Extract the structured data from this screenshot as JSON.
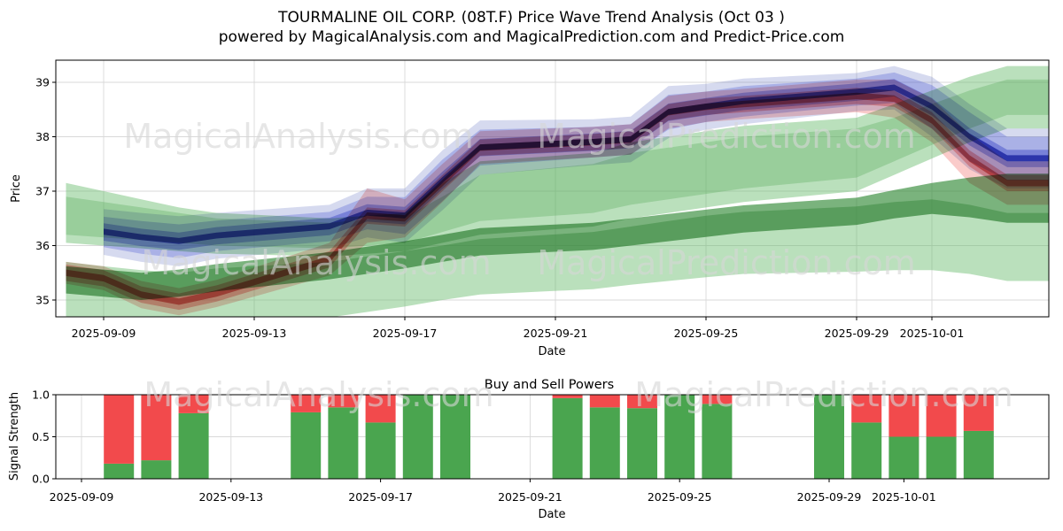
{
  "header": {
    "title_line1": "TOURMALINE OIL CORP. (08T.F) Price Wave Trend Analysis (Oct 03 )",
    "title_line2": "powered by MagicalAnalysis.com and MagicalPrediction.com and Predict-Price.com"
  },
  "watermarks": {
    "analysis": "MagicalAnalysis.com",
    "prediction": "MagicalPrediction.com"
  },
  "chart_data": [
    {
      "type": "area",
      "name": "price-wave-trend",
      "xlabel": "Date",
      "ylabel": "Price",
      "ylim": [
        34.69,
        39.41
      ],
      "yticks": [
        35,
        36,
        37,
        38,
        39
      ],
      "ytick_labels": [
        "35",
        "36",
        "37",
        "38",
        "39"
      ],
      "xticks": [
        "2025-09-09",
        "2025-09-13",
        "2025-09-17",
        "2025-09-21",
        "2025-09-25",
        "2025-09-29",
        "2025-10-01"
      ],
      "grid": true,
      "legend": "none",
      "dates": [
        "2025-09-08",
        "2025-09-09",
        "2025-09-10",
        "2025-09-11",
        "2025-09-12",
        "2025-09-15",
        "2025-09-16",
        "2025-09-17",
        "2025-09-18",
        "2025-09-19",
        "2025-09-22",
        "2025-09-23",
        "2025-09-24",
        "2025-09-25",
        "2025-09-26",
        "2025-09-29",
        "2025-09-30",
        "2025-10-01",
        "2025-10-02",
        "2025-10-03"
      ],
      "series": [
        {
          "name": "green-outer-upper-band",
          "color": "#66bb6a",
          "opacity": 0.45,
          "start_index": 0,
          "top": [
            37.15,
            37.0,
            36.85,
            36.7,
            36.6,
            36.5,
            36.55,
            36.6,
            37.15,
            37.55,
            37.7,
            37.9,
            38.0,
            38.1,
            38.2,
            38.35,
            38.6,
            38.85,
            39.1,
            39.3
          ],
          "bottom": [
            36.05,
            36.0,
            35.95,
            35.9,
            35.85,
            35.8,
            35.85,
            35.9,
            36.05,
            36.2,
            36.35,
            36.5,
            36.6,
            36.7,
            36.8,
            37.0,
            37.3,
            37.6,
            37.9,
            38.15
          ]
        },
        {
          "name": "green-inner-upper-band",
          "color": "#66bb6a",
          "opacity": 0.3,
          "start_index": 0,
          "top": [
            36.9,
            36.8,
            36.7,
            36.6,
            36.5,
            36.42,
            36.48,
            36.52,
            36.9,
            37.3,
            37.5,
            37.7,
            37.8,
            37.9,
            38.0,
            38.15,
            38.35,
            38.6,
            38.85,
            39.05
          ],
          "bottom": [
            36.2,
            36.15,
            36.1,
            36.05,
            36.0,
            35.95,
            36.0,
            36.05,
            36.25,
            36.45,
            36.6,
            36.75,
            36.85,
            36.95,
            37.05,
            37.25,
            37.55,
            37.85,
            38.15,
            38.4
          ]
        },
        {
          "name": "green-outer-lower-band",
          "color": "#66bb6a",
          "opacity": 0.45,
          "start_index": 0,
          "top": [
            35.7,
            35.62,
            35.55,
            35.5,
            35.58,
            35.7,
            35.8,
            35.9,
            36.0,
            36.12,
            36.25,
            36.35,
            36.45,
            36.55,
            36.62,
            36.72,
            36.8,
            36.85,
            36.75,
            36.6
          ],
          "bottom": [
            34.7,
            34.62,
            34.55,
            34.5,
            34.55,
            34.68,
            34.78,
            34.88,
            35.0,
            35.1,
            35.2,
            35.28,
            35.35,
            35.42,
            35.48,
            35.52,
            35.55,
            35.55,
            35.48,
            35.35
          ]
        },
        {
          "name": "green-mid-band",
          "color": "#338a37",
          "opacity": 0.65,
          "start_index": 0,
          "top": [
            35.62,
            35.56,
            35.5,
            35.56,
            35.66,
            35.88,
            35.98,
            36.08,
            36.2,
            36.32,
            36.42,
            36.5,
            36.58,
            36.66,
            36.74,
            36.88,
            37.02,
            37.15,
            37.25,
            37.32
          ],
          "bottom": [
            35.12,
            35.06,
            35.0,
            35.06,
            35.16,
            35.38,
            35.48,
            35.58,
            35.7,
            35.82,
            35.92,
            36.0,
            36.08,
            36.16,
            36.24,
            36.38,
            36.5,
            36.58,
            36.52,
            36.42
          ]
        },
        {
          "name": "red-wide-band",
          "color": "#ef5350",
          "opacity": 0.3,
          "start_index": 0,
          "top": [
            35.7,
            35.62,
            35.35,
            35.22,
            35.37,
            36.05,
            37.05,
            36.85,
            37.5,
            38.1,
            38.18,
            38.23,
            38.75,
            38.83,
            38.88,
            39.05,
            39.05,
            38.7,
            38.05,
            37.55
          ],
          "bottom": [
            35.3,
            35.18,
            34.85,
            34.72,
            34.87,
            35.45,
            36.05,
            36.15,
            36.8,
            37.5,
            37.62,
            37.67,
            38.15,
            38.27,
            38.32,
            38.45,
            38.35,
            37.9,
            37.15,
            36.75
          ]
        },
        {
          "name": "red-mid-band",
          "color": "#e84547",
          "opacity": 0.4,
          "start_index": 0,
          "top": [
            35.65,
            35.55,
            35.25,
            35.12,
            35.27,
            35.9,
            36.7,
            36.65,
            37.3,
            37.95,
            38.05,
            38.1,
            38.6,
            38.7,
            38.75,
            38.9,
            38.85,
            38.45,
            37.75,
            37.3
          ],
          "bottom": [
            35.35,
            35.25,
            34.95,
            34.82,
            34.97,
            35.6,
            36.4,
            36.35,
            37.0,
            37.65,
            37.75,
            37.8,
            38.3,
            38.4,
            38.45,
            38.6,
            38.55,
            38.15,
            37.45,
            37.0
          ]
        },
        {
          "name": "red-center-line",
          "color": "#c62828",
          "opacity": 0.6,
          "start_index": 0,
          "top": [
            35.56,
            35.46,
            35.16,
            35.03,
            35.18,
            35.81,
            36.61,
            36.56,
            37.21,
            37.86,
            37.96,
            38.01,
            38.51,
            38.61,
            38.66,
            38.81,
            38.76,
            38.36,
            37.66,
            37.21
          ],
          "bottom": [
            35.44,
            35.34,
            35.04,
            34.91,
            35.06,
            35.69,
            36.49,
            36.44,
            37.09,
            37.74,
            37.84,
            37.89,
            38.39,
            38.49,
            38.54,
            38.69,
            38.64,
            38.24,
            37.54,
            37.09
          ]
        },
        {
          "name": "blue-xwide-band",
          "color": "#5c6bc0",
          "opacity": 0.25,
          "start_index": 1,
          "top": [
            36.67,
            36.6,
            36.54,
            36.6,
            36.75,
            37.05,
            37.05,
            37.75,
            38.3,
            38.32,
            38.37,
            38.93,
            38.97,
            39.07,
            39.17,
            39.3,
            39.1,
            38.6,
            38.15
          ],
          "bottom": [
            35.83,
            35.7,
            35.62,
            35.76,
            35.95,
            36.15,
            36.05,
            36.65,
            37.3,
            37.48,
            37.53,
            37.97,
            38.13,
            38.23,
            38.47,
            38.5,
            38.0,
            37.4,
            37.05
          ]
        },
        {
          "name": "blue-wide-band",
          "color": "#5160e0",
          "opacity": 0.3,
          "start_index": 1,
          "top": [
            36.53,
            36.45,
            36.39,
            36.46,
            36.62,
            36.9,
            36.89,
            37.58,
            38.13,
            38.18,
            38.23,
            38.77,
            38.83,
            38.93,
            39.07,
            39.18,
            38.95,
            38.45,
            38.0
          ],
          "bottom": [
            35.97,
            35.85,
            35.77,
            35.9,
            36.08,
            36.3,
            36.21,
            36.82,
            37.47,
            37.62,
            37.67,
            38.13,
            38.27,
            38.37,
            38.57,
            38.62,
            38.15,
            37.55,
            37.2
          ]
        },
        {
          "name": "blue-mid-band",
          "color": "#4150d8",
          "opacity": 0.4,
          "start_index": 1,
          "top": [
            36.41,
            36.31,
            36.24,
            36.34,
            36.51,
            36.76,
            36.71,
            37.36,
            37.96,
            38.06,
            38.11,
            38.61,
            38.71,
            38.81,
            38.98,
            39.06,
            38.71,
            38.16,
            37.76
          ],
          "bottom": [
            36.09,
            35.99,
            35.92,
            36.02,
            36.19,
            36.44,
            36.39,
            37.04,
            37.64,
            37.74,
            37.79,
            38.29,
            38.39,
            38.49,
            38.66,
            38.74,
            38.39,
            37.84,
            37.44
          ]
        },
        {
          "name": "blue-center-line",
          "color": "#2636b8",
          "opacity": 0.75,
          "start_index": 1,
          "top": [
            36.31,
            36.21,
            36.14,
            36.24,
            36.41,
            36.66,
            36.61,
            37.26,
            37.86,
            37.96,
            38.01,
            38.51,
            38.61,
            38.71,
            38.88,
            38.96,
            38.61,
            38.06,
            37.66
          ],
          "bottom": [
            36.2,
            36.1,
            36.03,
            36.13,
            36.3,
            36.55,
            36.5,
            37.15,
            37.75,
            37.85,
            37.9,
            38.4,
            38.5,
            38.6,
            38.77,
            38.85,
            38.5,
            37.95,
            37.55
          ]
        }
      ]
    },
    {
      "type": "bar",
      "name": "buy-sell-powers",
      "title": "Buy and Sell Powers",
      "xlabel": "Date",
      "ylabel": "Signal Strength",
      "ylim": [
        0.0,
        1.0
      ],
      "yticks": [
        0.0,
        0.5,
        1.0
      ],
      "ytick_labels": [
        "0.0",
        "0.5",
        "1.0"
      ],
      "xticks": [
        "2025-09-09",
        "2025-09-13",
        "2025-09-17",
        "2025-09-21",
        "2025-09-25",
        "2025-09-29",
        "2025-10-01"
      ],
      "grid": true,
      "colors": {
        "buy": "#4aa54f",
        "sell": "#f24a4c"
      },
      "bars": [
        {
          "date": "2025-09-10",
          "buy": 0.18,
          "sell": 0.82
        },
        {
          "date": "2025-09-11",
          "buy": 0.22,
          "sell": 0.78
        },
        {
          "date": "2025-09-12",
          "buy": 0.78,
          "sell": 0.22
        },
        {
          "date": "2025-09-15",
          "buy": 0.79,
          "sell": 0.21
        },
        {
          "date": "2025-09-16",
          "buy": 0.85,
          "sell": 0.15
        },
        {
          "date": "2025-09-17",
          "buy": 0.67,
          "sell": 0.33
        },
        {
          "date": "2025-09-18",
          "buy": 1.0,
          "sell": 0.0
        },
        {
          "date": "2025-09-19",
          "buy": 1.0,
          "sell": 0.0
        },
        {
          "date": "2025-09-22",
          "buy": 0.96,
          "sell": 0.04
        },
        {
          "date": "2025-09-23",
          "buy": 0.85,
          "sell": 0.15
        },
        {
          "date": "2025-09-24",
          "buy": 0.84,
          "sell": 0.16
        },
        {
          "date": "2025-09-25",
          "buy": 1.0,
          "sell": 0.0
        },
        {
          "date": "2025-09-26",
          "buy": 0.89,
          "sell": 0.11
        },
        {
          "date": "2025-09-29",
          "buy": 1.0,
          "sell": 0.0
        },
        {
          "date": "2025-09-30",
          "buy": 0.67,
          "sell": 0.33
        },
        {
          "date": "2025-10-01",
          "buy": 0.5,
          "sell": 0.5
        },
        {
          "date": "2025-10-02",
          "buy": 0.5,
          "sell": 0.5
        },
        {
          "date": "2025-10-03",
          "buy": 0.57,
          "sell": 0.43
        }
      ]
    }
  ]
}
